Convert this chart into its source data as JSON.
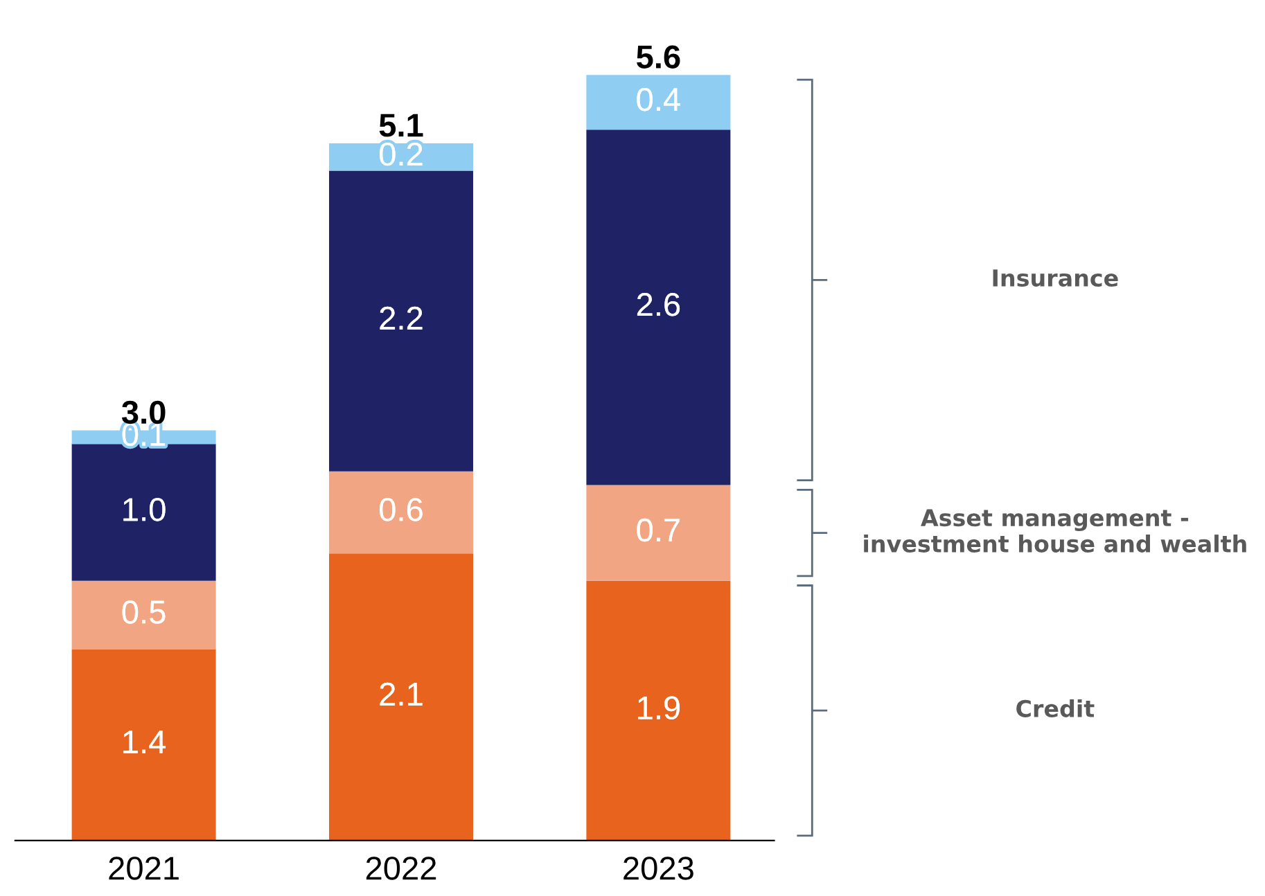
{
  "chart_data": {
    "type": "bar",
    "stacked": true,
    "categories": [
      "2021",
      "2022",
      "2023"
    ],
    "series": [
      {
        "color": "#e8641e",
        "values": [
          1.4,
          2.1,
          1.9
        ],
        "value_labels": [
          "1.4",
          "2.1",
          "1.9"
        ]
      },
      {
        "color": "#f2a583",
        "values": [
          0.5,
          0.6,
          0.7
        ],
        "value_labels": [
          "0.5",
          "0.6",
          "0.7"
        ]
      },
      {
        "color": "#1f2366",
        "values": [
          1.0,
          2.2,
          2.6
        ],
        "value_labels": [
          "1.0",
          "2.2",
          "2.6"
        ]
      },
      {
        "color": "#8fcdf2",
        "values": [
          0.1,
          0.2,
          0.4
        ],
        "value_labels": [
          "0.1",
          "0.2",
          "0.4"
        ]
      }
    ],
    "totals": [
      "3.0",
      "5.1",
      "5.6"
    ],
    "annotations": [
      "Credit",
      "Asset management -\ninvestment house and wealth",
      "Insurance"
    ],
    "grid": false,
    "legend": false
  }
}
